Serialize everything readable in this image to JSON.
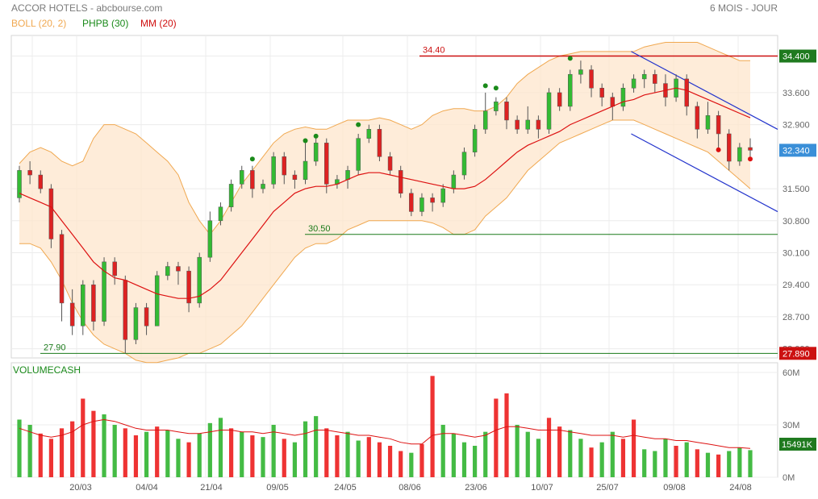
{
  "header": {
    "title": "ACCOR HOTELS - abcbourse.com",
    "period": "6 MOIS - JOUR"
  },
  "legend": {
    "boll": "BOLL (20, 2)",
    "phpb": "PHPB (30)",
    "mm": "MM (20)"
  },
  "volume_panel": {
    "title": "VOLUMECASH",
    "ticks": [
      "60M",
      "30M",
      "0M"
    ],
    "tick_values": [
      60,
      30,
      0
    ],
    "last_value": "15491K"
  },
  "price_axis": {
    "ticks": [
      "34.400",
      "33.600",
      "32.900",
      "31.500",
      "30.800",
      "30.100",
      "29.400",
      "28.700",
      "28.000"
    ],
    "tick_values": [
      34.4,
      33.6,
      32.9,
      31.5,
      30.8,
      30.1,
      29.4,
      28.7,
      28.0
    ],
    "last_price": "32.340",
    "low_label": "27.890"
  },
  "levels": [
    {
      "label": "34.40",
      "value": 34.4
    },
    {
      "label": "30.50",
      "value": 30.5
    },
    {
      "label": "27.90",
      "value": 27.9
    }
  ],
  "x_labels": [
    "20/03",
    "04/04",
    "21/04",
    "09/05",
    "24/05",
    "08/06",
    "23/06",
    "10/07",
    "25/07",
    "09/08",
    "24/08"
  ],
  "chart_data": {
    "type": "candlestick",
    "title": "ACCOR HOTELS - abcbourse.com",
    "period": "6 MOIS - JOUR",
    "ylim": [
      27.8,
      34.85
    ],
    "volume_ylim": [
      0,
      60
    ],
    "volume_unit": "M",
    "series": [
      {
        "name": "BOLL (20, 2)",
        "upper": [
          32.05,
          32.3,
          32.4,
          32.3,
          32.1,
          32.0,
          32.1,
          32.6,
          32.9,
          32.9,
          32.8,
          32.7,
          32.5,
          32.3,
          32.1,
          31.8,
          31.2,
          30.8,
          30.5,
          30.8,
          31.2,
          31.6,
          31.9,
          32.2,
          32.5,
          32.7,
          32.8,
          32.85,
          32.8,
          32.8,
          32.9,
          33.0,
          33.0,
          33.0,
          33.05,
          33.0,
          32.9,
          32.8,
          32.9,
          33.1,
          33.2,
          33.25,
          33.25,
          33.2,
          33.2,
          33.3,
          33.5,
          33.8,
          34.0,
          34.15,
          34.3,
          34.4,
          34.45,
          34.5,
          34.5,
          34.5,
          34.5,
          34.5,
          34.5,
          34.6,
          34.65,
          34.7,
          34.7,
          34.7,
          34.7,
          34.6,
          34.5,
          34.4,
          34.3,
          34.3
        ],
        "lower": [
          30.3,
          30.3,
          30.2,
          29.9,
          29.5,
          29.0,
          28.6,
          28.3,
          28.1,
          28.0,
          27.9,
          27.75,
          27.7,
          27.7,
          27.75,
          27.8,
          27.9,
          27.9,
          28.0,
          28.1,
          28.3,
          28.5,
          28.8,
          29.1,
          29.4,
          29.7,
          30.0,
          30.2,
          30.3,
          30.3,
          30.4,
          30.6,
          30.7,
          30.8,
          30.8,
          30.8,
          30.8,
          30.8,
          30.8,
          30.75,
          30.65,
          30.5,
          30.5,
          30.6,
          30.9,
          31.1,
          31.3,
          31.6,
          31.9,
          32.1,
          32.3,
          32.5,
          32.6,
          32.7,
          32.8,
          32.9,
          33.0,
          33.0,
          33.0,
          32.9,
          32.8,
          32.7,
          32.6,
          32.5,
          32.4,
          32.3,
          32.1,
          31.9,
          31.7,
          31.5
        ]
      },
      {
        "name": "MM (20)",
        "values": [
          31.4,
          31.3,
          31.2,
          31.1,
          30.8,
          30.5,
          30.2,
          29.9,
          29.7,
          29.55,
          29.5,
          29.4,
          29.3,
          29.2,
          29.15,
          29.1,
          29.1,
          29.15,
          29.3,
          29.5,
          29.8,
          30.1,
          30.4,
          30.7,
          31.0,
          31.2,
          31.4,
          31.5,
          31.55,
          31.55,
          31.6,
          31.7,
          31.8,
          31.85,
          31.85,
          31.8,
          31.75,
          31.7,
          31.65,
          31.6,
          31.55,
          31.5,
          31.5,
          31.55,
          31.7,
          31.9,
          32.1,
          32.3,
          32.45,
          32.55,
          32.65,
          32.75,
          32.9,
          33.0,
          33.1,
          33.2,
          33.3,
          33.4,
          33.45,
          33.55,
          33.6,
          33.65,
          33.7,
          33.65,
          33.55,
          33.45,
          33.35,
          33.25,
          33.15,
          33.05
        ]
      }
    ],
    "candles": [
      [
        31.3,
        31.9,
        31.2,
        32.0
      ],
      [
        31.9,
        31.8,
        31.6,
        32.1
      ],
      [
        31.8,
        31.5,
        31.4,
        31.9
      ],
      [
        31.5,
        30.4,
        30.2,
        31.6
      ],
      [
        30.5,
        29.0,
        28.6,
        30.6
      ],
      [
        29.0,
        28.5,
        28.3,
        29.3
      ],
      [
        28.5,
        29.4,
        28.3,
        29.5
      ],
      [
        29.4,
        28.6,
        28.4,
        29.5
      ],
      [
        28.6,
        29.9,
        28.5,
        30.0
      ],
      [
        29.9,
        29.6,
        29.4,
        30.0
      ],
      [
        29.5,
        28.2,
        27.9,
        29.6
      ],
      [
        28.2,
        28.9,
        28.1,
        29.0
      ],
      [
        28.9,
        28.5,
        28.3,
        29.0
      ],
      [
        28.5,
        29.6,
        28.5,
        29.7
      ],
      [
        29.6,
        29.8,
        29.5,
        29.9
      ],
      [
        29.8,
        29.7,
        29.4,
        29.9
      ],
      [
        29.7,
        29.0,
        28.8,
        29.8
      ],
      [
        29.0,
        30.0,
        28.9,
        30.1
      ],
      [
        30.0,
        30.8,
        29.9,
        31.0
      ],
      [
        30.8,
        31.1,
        30.7,
        31.2
      ],
      [
        31.1,
        31.6,
        31.0,
        31.7
      ],
      [
        31.6,
        31.9,
        31.5,
        32.0
      ],
      [
        31.9,
        31.5,
        31.3,
        32.0
      ],
      [
        31.5,
        31.6,
        31.4,
        31.7
      ],
      [
        31.6,
        32.2,
        31.5,
        32.3
      ],
      [
        32.2,
        31.8,
        31.6,
        32.3
      ],
      [
        31.8,
        31.7,
        31.5,
        31.9
      ],
      [
        31.7,
        32.1,
        31.6,
        32.5
      ],
      [
        32.1,
        32.5,
        32.0,
        32.6
      ],
      [
        32.5,
        31.6,
        31.4,
        32.6
      ],
      [
        31.6,
        31.7,
        31.5,
        31.8
      ],
      [
        31.7,
        31.9,
        31.5,
        32.0
      ],
      [
        31.9,
        32.6,
        31.8,
        32.7
      ],
      [
        32.6,
        32.8,
        32.5,
        32.9
      ],
      [
        32.8,
        32.2,
        32.1,
        32.9
      ],
      [
        32.2,
        31.9,
        31.8,
        32.3
      ],
      [
        31.9,
        31.4,
        31.3,
        32.0
      ],
      [
        31.4,
        31.0,
        30.9,
        31.5
      ],
      [
        31.0,
        31.3,
        30.9,
        31.4
      ],
      [
        31.3,
        31.2,
        31.0,
        31.4
      ],
      [
        31.2,
        31.5,
        31.1,
        31.6
      ],
      [
        31.5,
        31.8,
        31.4,
        31.9
      ],
      [
        31.8,
        32.3,
        31.7,
        32.4
      ],
      [
        32.3,
        32.8,
        32.2,
        32.9
      ],
      [
        32.8,
        33.2,
        32.7,
        33.6
      ],
      [
        33.2,
        33.4,
        33.1,
        33.5
      ],
      [
        33.4,
        33.0,
        32.8,
        33.5
      ],
      [
        33.0,
        32.8,
        32.7,
        33.1
      ],
      [
        32.8,
        33.0,
        32.7,
        33.3
      ],
      [
        33.0,
        32.8,
        32.6,
        33.1
      ],
      [
        32.8,
        33.6,
        32.7,
        33.7
      ],
      [
        33.6,
        33.3,
        33.2,
        33.7
      ],
      [
        33.3,
        34.0,
        33.2,
        34.1
      ],
      [
        34.0,
        34.1,
        33.8,
        34.3
      ],
      [
        34.1,
        33.7,
        33.5,
        34.2
      ],
      [
        33.7,
        33.5,
        33.3,
        33.8
      ],
      [
        33.5,
        33.3,
        33.0,
        33.6
      ],
      [
        33.3,
        33.7,
        33.2,
        33.8
      ],
      [
        33.7,
        33.9,
        33.6,
        34.0
      ],
      [
        33.9,
        34.0,
        33.7,
        34.1
      ],
      [
        34.0,
        33.8,
        33.6,
        34.1
      ],
      [
        33.8,
        33.5,
        33.3,
        34.0
      ],
      [
        33.5,
        33.9,
        33.4,
        34.0
      ],
      [
        33.9,
        33.3,
        33.1,
        34.0
      ],
      [
        33.3,
        32.8,
        32.6,
        33.4
      ],
      [
        32.8,
        33.1,
        32.7,
        33.4
      ],
      [
        33.1,
        32.7,
        32.4,
        33.2
      ],
      [
        32.7,
        32.1,
        31.9,
        32.8
      ],
      [
        32.1,
        32.4,
        32.0,
        32.5
      ],
      [
        32.4,
        32.34,
        32.2,
        32.6
      ]
    ],
    "volumes": [
      {
        "v": 33,
        "up": true
      },
      {
        "v": 30,
        "up": true
      },
      {
        "v": 25,
        "up": false
      },
      {
        "v": 22,
        "up": false
      },
      {
        "v": 28,
        "up": false
      },
      {
        "v": 32,
        "up": false
      },
      {
        "v": 45,
        "up": false
      },
      {
        "v": 38,
        "up": false
      },
      {
        "v": 36,
        "up": true
      },
      {
        "v": 30,
        "up": true
      },
      {
        "v": 28,
        "up": false
      },
      {
        "v": 24,
        "up": false
      },
      {
        "v": 26,
        "up": true
      },
      {
        "v": 29,
        "up": false
      },
      {
        "v": 27,
        "up": true
      },
      {
        "v": 22,
        "up": true
      },
      {
        "v": 20,
        "up": false
      },
      {
        "v": 25,
        "up": true
      },
      {
        "v": 31,
        "up": true
      },
      {
        "v": 34,
        "up": true
      },
      {
        "v": 28,
        "up": false
      },
      {
        "v": 26,
        "up": true
      },
      {
        "v": 24,
        "up": false
      },
      {
        "v": 23,
        "up": true
      },
      {
        "v": 30,
        "up": true
      },
      {
        "v": 22,
        "up": false
      },
      {
        "v": 20,
        "up": true
      },
      {
        "v": 32,
        "up": true
      },
      {
        "v": 35,
        "up": true
      },
      {
        "v": 28,
        "up": false
      },
      {
        "v": 24,
        "up": false
      },
      {
        "v": 26,
        "up": true
      },
      {
        "v": 21,
        "up": true
      },
      {
        "v": 23,
        "up": false
      },
      {
        "v": 20,
        "up": false
      },
      {
        "v": 18,
        "up": false
      },
      {
        "v": 15,
        "up": false
      },
      {
        "v": 14,
        "up": true
      },
      {
        "v": 19,
        "up": false
      },
      {
        "v": 58,
        "up": false
      },
      {
        "v": 30,
        "up": true
      },
      {
        "v": 25,
        "up": true
      },
      {
        "v": 20,
        "up": true
      },
      {
        "v": 18,
        "up": true
      },
      {
        "v": 26,
        "up": true
      },
      {
        "v": 45,
        "up": false
      },
      {
        "v": 48,
        "up": false
      },
      {
        "v": 30,
        "up": true
      },
      {
        "v": 26,
        "up": true
      },
      {
        "v": 22,
        "up": true
      },
      {
        "v": 34,
        "up": false
      },
      {
        "v": 29,
        "up": false
      },
      {
        "v": 27,
        "up": true
      },
      {
        "v": 22,
        "up": true
      },
      {
        "v": 17,
        "up": false
      },
      {
        "v": 20,
        "up": true
      },
      {
        "v": 26,
        "up": true
      },
      {
        "v": 22,
        "up": false
      },
      {
        "v": 33,
        "up": false
      },
      {
        "v": 16,
        "up": true
      },
      {
        "v": 15,
        "up": true
      },
      {
        "v": 22,
        "up": true
      },
      {
        "v": 18,
        "up": false
      },
      {
        "v": 20,
        "up": true
      },
      {
        "v": 16,
        "up": false
      },
      {
        "v": 14,
        "up": true
      },
      {
        "v": 13,
        "up": false
      },
      {
        "v": 15,
        "up": true
      },
      {
        "v": 17,
        "up": true
      },
      {
        "v": 15.5,
        "up": true
      }
    ],
    "volume_mm": [
      28,
      26,
      24,
      23,
      24,
      26,
      30,
      32,
      33,
      32,
      30,
      28,
      27,
      27,
      27,
      26,
      25,
      25,
      26,
      27,
      27,
      26,
      26,
      25,
      26,
      25,
      24,
      25,
      27,
      27,
      26,
      25,
      24,
      24,
      23,
      22,
      20,
      19,
      19,
      24,
      25,
      25,
      24,
      23,
      24,
      27,
      29,
      29,
      28,
      27,
      27,
      27,
      26,
      25,
      24,
      24,
      24,
      23,
      24,
      23,
      22,
      22,
      21,
      21,
      20,
      19,
      18,
      17,
      17,
      16.5
    ],
    "trend_channel": {
      "upper": {
        "from_index": 57,
        "from_value": 34.5,
        "to_index": 69,
        "to_value": 33.1
      },
      "lower": {
        "from_index": 57,
        "from_value": 32.7,
        "to_index": 69,
        "to_value": 31.3
      }
    },
    "markers": [
      {
        "index": 22,
        "value": 32.15,
        "kind": "high"
      },
      {
        "index": 27,
        "value": 32.55,
        "kind": "high"
      },
      {
        "index": 28,
        "value": 32.65,
        "kind": "high"
      },
      {
        "index": 32,
        "value": 32.9,
        "kind": "high"
      },
      {
        "index": 44,
        "value": 33.75,
        "kind": "high"
      },
      {
        "index": 45,
        "value": 33.7,
        "kind": "high"
      },
      {
        "index": 52,
        "value": 34.35,
        "kind": "high"
      },
      {
        "index": 66,
        "value": 32.35,
        "kind": "low"
      },
      {
        "index": 69,
        "value": 32.15,
        "kind": "low"
      }
    ]
  }
}
